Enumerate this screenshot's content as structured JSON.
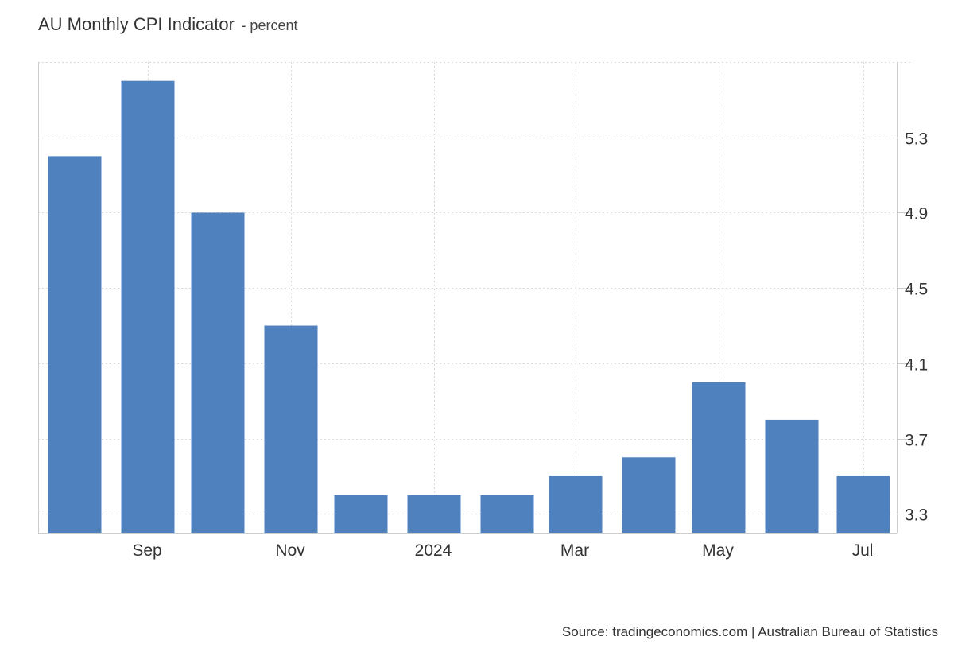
{
  "header": {
    "title": "AU Monthly CPI Indicator",
    "subtitle": "- percent"
  },
  "footer": {
    "source": "Source: tradingeconomics.com | Australian Bureau of Statistics"
  },
  "colors": {
    "bar": "#4e81bd",
    "grid": "#d9d9d9",
    "axis": "#cccccc"
  },
  "chart_data": {
    "type": "bar",
    "categories": [
      "Aug 2023",
      "Sep 2023",
      "Oct 2023",
      "Nov 2023",
      "Dec 2023",
      "Jan 2024",
      "Feb 2024",
      "Mar 2024",
      "Apr 2024",
      "May 2024",
      "Jun 2024",
      "Jul 2024"
    ],
    "series": [
      {
        "values": [
          5.2,
          5.6,
          4.9,
          4.3,
          3.4,
          3.4,
          3.4,
          3.5,
          3.6,
          4.0,
          3.8,
          3.5
        ]
      }
    ],
    "x_tick_labels": [
      {
        "label": "Sep",
        "category": "Sep 2023"
      },
      {
        "label": "Nov",
        "category": "Nov 2023"
      },
      {
        "label": "2024",
        "category": "Jan 2024"
      },
      {
        "label": "Mar",
        "category": "Mar 2024"
      },
      {
        "label": "May",
        "category": "May 2024"
      },
      {
        "label": "Jul",
        "category": "Jul 2024"
      }
    ],
    "y_ticks": [
      "3.3",
      "3.7",
      "4.1",
      "4.5",
      "4.9",
      "5.3"
    ],
    "ylim": [
      3.2,
      5.7
    ],
    "y_axis_side": "right",
    "grid": true,
    "legend": "none",
    "title": "AU Monthly CPI Indicator",
    "xlabel": "",
    "ylabel": ""
  }
}
